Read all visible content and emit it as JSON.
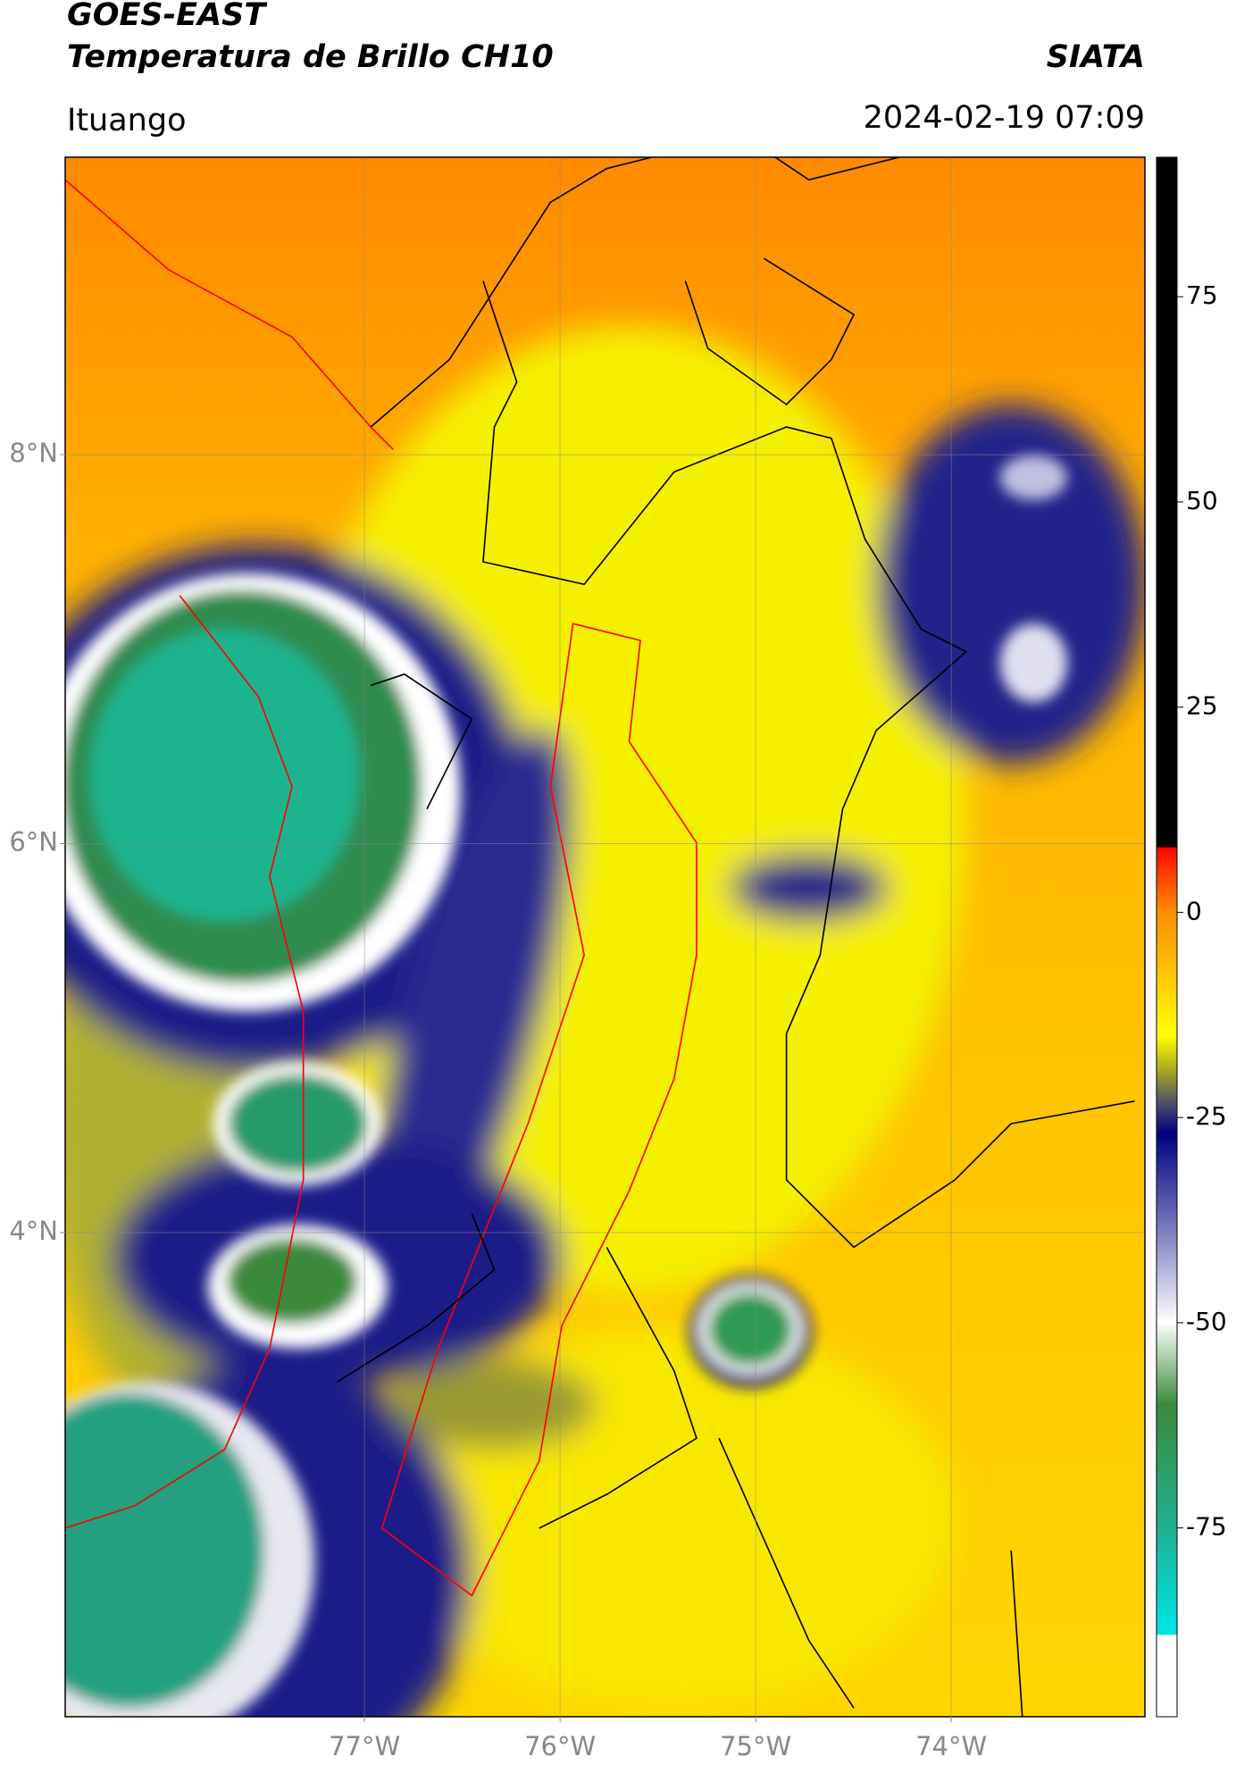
{
  "header": {
    "title": "GOES-EAST",
    "subtitle": "Temperatura de Brillo CH10",
    "agency": "SIATA",
    "location": "Ituango",
    "datetime": "2024-02-19 07:09"
  },
  "map": {
    "xlim": [
      -78.53,
      -73.01
    ],
    "ylim": [
      1.51,
      9.53
    ],
    "xticks": [
      {
        "value": -77,
        "label": "77°W"
      },
      {
        "value": -76,
        "label": "76°W"
      },
      {
        "value": -75,
        "label": "75°W"
      },
      {
        "value": -74,
        "label": "74°W"
      }
    ],
    "yticks": [
      {
        "value": 8,
        "label": "8°N"
      },
      {
        "value": 6,
        "label": "6°N"
      },
      {
        "value": 4,
        "label": "4°N"
      }
    ],
    "grid": true
  },
  "colorbar": {
    "lim": [
      -98,
      92
    ],
    "ticks": [
      75,
      50,
      25,
      0,
      -25,
      -50,
      -75
    ]
  }
}
